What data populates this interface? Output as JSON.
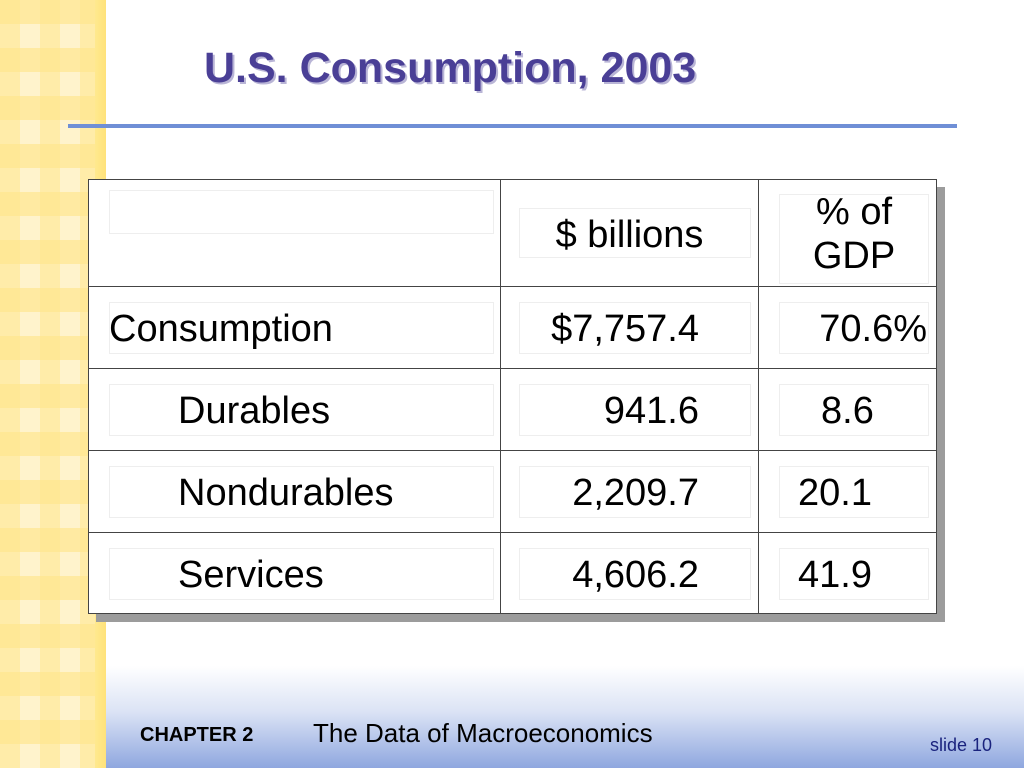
{
  "slide": {
    "title": "U.S. Consumption, 2003",
    "chapter_label": "CHAPTER 2",
    "chapter_title": "The Data of Macroeconomics",
    "slide_number": "slide 10"
  },
  "table": {
    "headers": [
      "",
      "$ billions",
      "% of GDP"
    ],
    "rows": [
      {
        "label": "Consumption",
        "billions": "$7,757.4",
        "pct": "70.6%"
      },
      {
        "label": "Durables",
        "billions": "941.6",
        "pct": "8.6"
      },
      {
        "label": "Nondurables",
        "billions": "2,209.7",
        "pct": "20.1"
      },
      {
        "label": "Services",
        "billions": "4,606.2",
        "pct": "41.9"
      }
    ]
  },
  "colors": {
    "title": "#4a3f96",
    "rule": "#6f8fd6",
    "footer_gradient_end": "#8fa7df",
    "left_strip": "#ffe98f"
  }
}
